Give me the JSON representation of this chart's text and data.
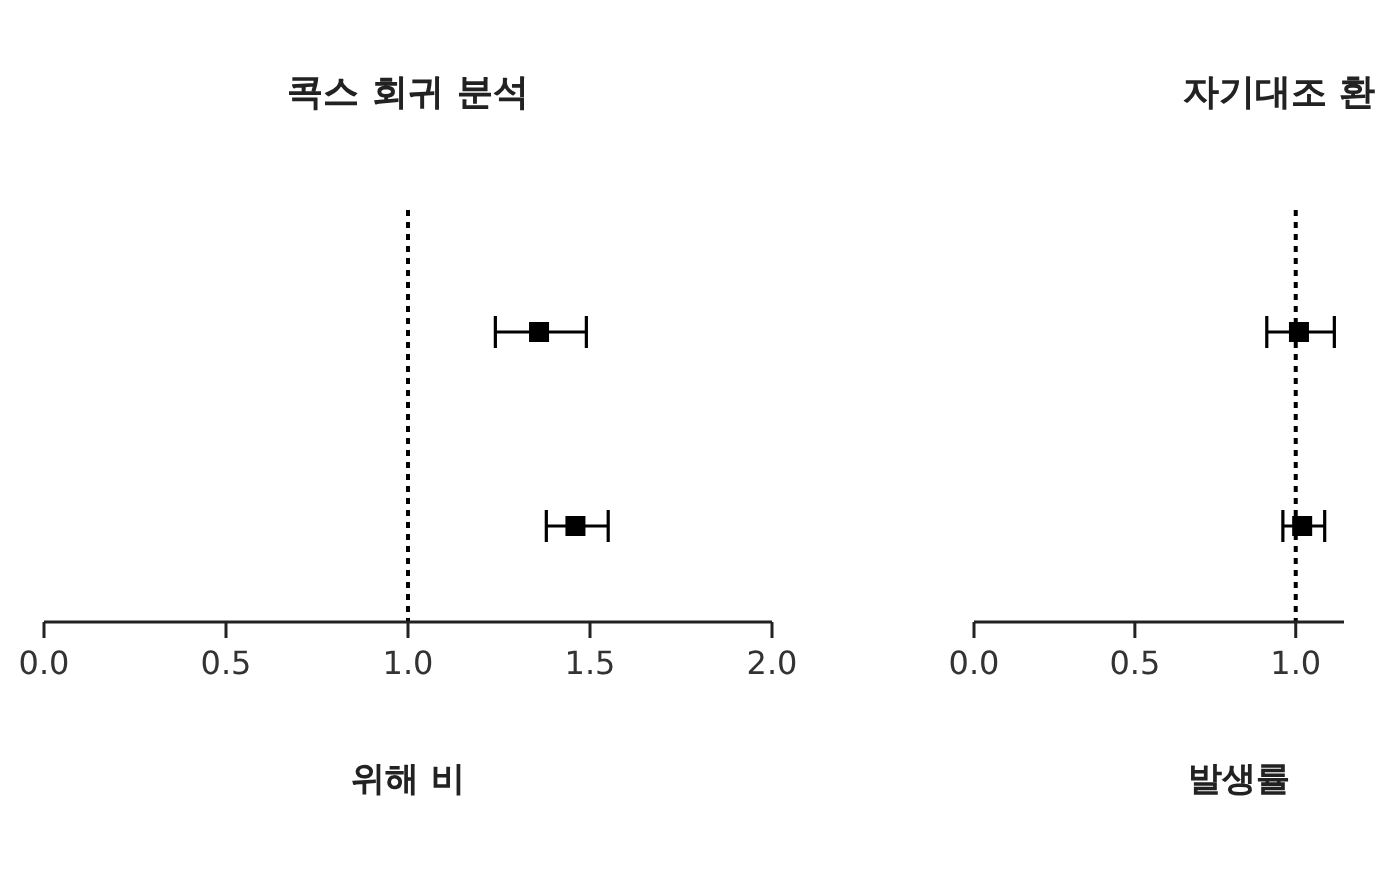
{
  "chart_data": [
    {
      "type": "scatter",
      "orientation": "horizontal",
      "title": "콕스 회귀 분석",
      "xlabel": "위해 비",
      "categories": [
        null,
        null
      ],
      "series": [
        {
          "color": "#000000",
          "values": [
            1.36,
            1.46
          ],
          "errors": [
            [
              1.24,
              1.49
            ],
            [
              1.38,
              1.55
            ]
          ]
        }
      ],
      "xlim": [
        0,
        2
      ],
      "xticks": [
        {
          "value": 0,
          "label": "0.0"
        },
        {
          "value": 0.5,
          "label": "0.5"
        },
        {
          "value": 1,
          "label": "1.0"
        },
        {
          "value": 1.5,
          "label": "1.5"
        },
        {
          "value": 2,
          "label": "2.0"
        }
      ],
      "marker": "square",
      "ref_lines": [
        {
          "axis": "x",
          "value": 1,
          "line_style": "dotted",
          "color": "#000000"
        }
      ]
    },
    {
      "type": "scatter",
      "orientation": "horizontal",
      "title": "자기대조 환",
      "xlabel": "발생률",
      "categories": [
        null,
        null
      ],
      "series": [
        {
          "color": "#000000",
          "values": [
            1.01,
            1.02
          ],
          "errors": [
            [
              0.91,
              1.12
            ],
            [
              0.96,
              1.09
            ]
          ]
        }
      ],
      "xlim": [
        0,
        1.15
      ],
      "xticks": [
        {
          "value": 0,
          "label": "0.0"
        },
        {
          "value": 0.5,
          "label": "0.5"
        },
        {
          "value": 1,
          "label": "1.0"
        }
      ],
      "marker": "square",
      "ref_lines": [
        {
          "axis": "x",
          "value": 1,
          "line_style": "dotted",
          "color": "#000000"
        }
      ]
    }
  ]
}
